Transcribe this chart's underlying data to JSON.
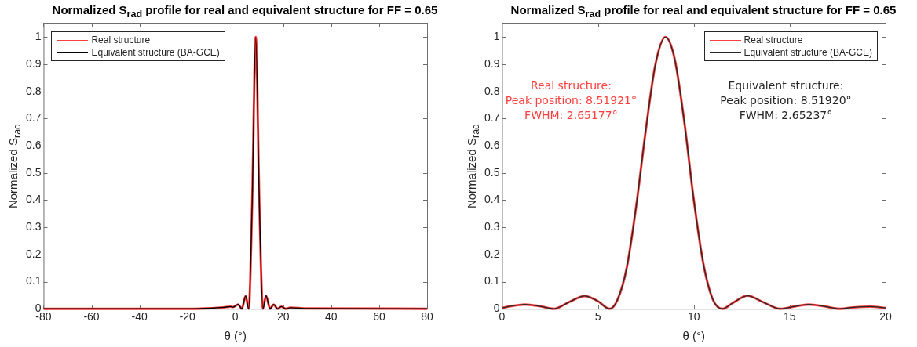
{
  "chart_data": [
    {
      "type": "line",
      "title": "Normalized S$_{rad}$ profile for real and equivalent structure for FF = 0.65",
      "xlabel": "θ (°)",
      "ylabel": "Normalized S$_{rad}$",
      "xlim": [
        -80,
        80
      ],
      "xticks": [
        -80,
        -60,
        -40,
        -20,
        0,
        20,
        40,
        60,
        80
      ],
      "ylim": [
        0,
        1.05
      ],
      "yticks": [
        0,
        0.1,
        0.2,
        0.3,
        0.4,
        0.5,
        0.6,
        0.7,
        0.8,
        0.9,
        1
      ],
      "x": [
        -80,
        -20,
        -10,
        -5,
        -2,
        -1,
        1.2,
        2.7,
        4.3,
        5.6,
        7,
        8.52,
        10,
        11.5,
        12.8,
        14.5,
        16,
        17.6,
        19.2,
        21,
        23,
        30,
        80
      ],
      "legend": "top left",
      "series": [
        {
          "name": "Real structure",
          "color": "#ff4040",
          "values": [
            0,
            0,
            0.002,
            0.005,
            0.008,
            0.006,
            0.016,
            0,
            0.047,
            0,
            0.38,
            1,
            0.4,
            0,
            0.048,
            0,
            0.016,
            0,
            0.008,
            0,
            0.004,
            0.001,
            0
          ]
        },
        {
          "name": "Equivalent structure (BA-GCE)",
          "color": "#000000",
          "values": [
            0,
            0,
            0.002,
            0.005,
            0.008,
            0.006,
            0.016,
            0,
            0.047,
            0,
            0.38,
            1,
            0.4,
            0,
            0.048,
            0,
            0.016,
            0,
            0.008,
            0,
            0.004,
            0.001,
            0
          ]
        }
      ]
    },
    {
      "type": "line",
      "title": "Normalized S$_{rad}$ profile for real and equivalent structure for FF = 0.65",
      "xlabel": "θ (°)",
      "ylabel": "Normalized S$_{rad}$",
      "xlim": [
        0,
        20
      ],
      "xticks": [
        0,
        5,
        10,
        15,
        20
      ],
      "ylim": [
        0,
        1.05
      ],
      "yticks": [
        0,
        0.1,
        0.2,
        0.3,
        0.4,
        0.5,
        0.6,
        0.7,
        0.8,
        0.9,
        1
      ],
      "x": [
        0,
        0.5,
        1.2,
        2,
        2.7,
        3.5,
        4.3,
        5,
        5.6,
        6,
        6.5,
        7,
        7.5,
        8,
        8.52,
        9,
        9.5,
        10,
        10.5,
        11,
        11.5,
        12,
        12.8,
        13.6,
        14.5,
        15.2,
        16,
        16.8,
        17.6,
        18.3,
        19.2,
        20
      ],
      "legend": "top right",
      "annotations": [
        "Real structure:\nPeak position: 8.51921°\nFWHM: 2.65177°",
        "Equivalent structure:\nPeak position: 8.51920°\nFWHM: 2.65237°"
      ],
      "series": [
        {
          "name": "Real structure",
          "color": "#ff4040",
          "values": [
            0.003,
            0.01,
            0.016,
            0.009,
            0,
            0.025,
            0.047,
            0.028,
            0,
            0.03,
            0.15,
            0.38,
            0.66,
            0.9,
            1,
            0.92,
            0.69,
            0.4,
            0.165,
            0.033,
            0,
            0.02,
            0.048,
            0.025,
            0,
            0.008,
            0.016,
            0.009,
            0,
            0.005,
            0.008,
            0.003
          ]
        },
        {
          "name": "Equivalent structure (BA-GCE)",
          "color": "#262626",
          "values": [
            0.003,
            0.01,
            0.016,
            0.009,
            0,
            0.025,
            0.047,
            0.028,
            0,
            0.03,
            0.15,
            0.38,
            0.66,
            0.9,
            1,
            0.92,
            0.69,
            0.4,
            0.165,
            0.033,
            0,
            0.02,
            0.048,
            0.025,
            0,
            0.008,
            0.016,
            0.009,
            0,
            0.005,
            0.008,
            0.003
          ]
        }
      ]
    }
  ]
}
